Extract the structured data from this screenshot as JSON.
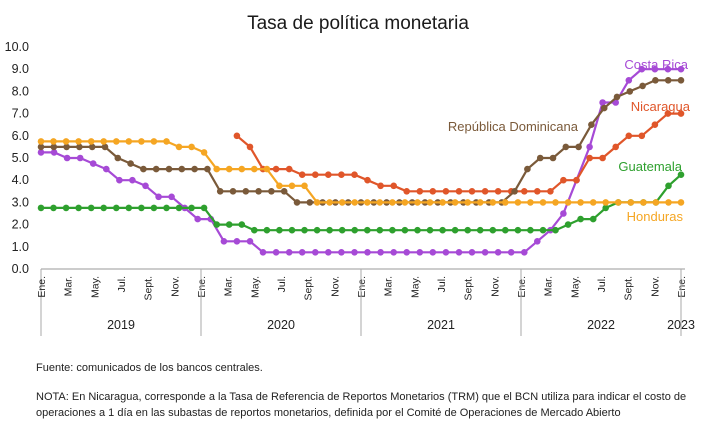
{
  "chart_data": {
    "type": "line",
    "title": "Tasa de política monetaria",
    "xlabel": "",
    "ylabel": "",
    "ylim": [
      0,
      10
    ],
    "yticks": [
      "0.0",
      "1.0",
      "2.0",
      "3.0",
      "4.0",
      "5.0",
      "6.0",
      "7.0",
      "8.0",
      "9.0",
      "10.0"
    ],
    "x_tick_labels": [
      "Ene.",
      "Mar.",
      "May.",
      "Jul.",
      "Sept.",
      "Nov.",
      "Ene.",
      "Mar.",
      "May.",
      "Jul.",
      "Sept.",
      "Nov.",
      "Ene.",
      "Mar.",
      "May.",
      "Jul.",
      "Sept.",
      "Nov.",
      "Ene.",
      "Mar.",
      "May.",
      "Jul.",
      "Sept.",
      "Nov.",
      "Ene."
    ],
    "years": [
      {
        "label": "2019",
        "start": 0,
        "end": 12
      },
      {
        "label": "2020",
        "start": 12,
        "end": 24
      },
      {
        "label": "2021",
        "start": 24,
        "end": 36
      },
      {
        "label": "2022",
        "start": 36,
        "end": 48
      },
      {
        "label": "2023",
        "start": 48,
        "end": 49
      }
    ],
    "x_range": [
      "2019-01",
      "2023-01"
    ],
    "grid": false,
    "series": [
      {
        "name": "Costa Rica",
        "color": "#a64ad6",
        "values": [
          5.25,
          5.25,
          5.0,
          5.0,
          4.75,
          4.5,
          4.0,
          4.0,
          3.75,
          3.25,
          3.25,
          2.75,
          2.25,
          2.25,
          1.25,
          1.25,
          1.25,
          0.75,
          0.75,
          0.75,
          0.75,
          0.75,
          0.75,
          0.75,
          0.75,
          0.75,
          0.75,
          0.75,
          0.75,
          0.75,
          0.75,
          0.75,
          0.75,
          0.75,
          0.75,
          0.75,
          0.75,
          0.75,
          1.25,
          1.75,
          2.5,
          4.0,
          5.5,
          7.5,
          7.5,
          8.5,
          9.0,
          9.0,
          9.0,
          9.0
        ]
      },
      {
        "name": "Nicaragua",
        "color": "#e0562a",
        "values": [
          null,
          null,
          null,
          null,
          null,
          null,
          null,
          null,
          null,
          null,
          null,
          null,
          null,
          null,
          null,
          6.0,
          5.5,
          4.5,
          4.5,
          4.5,
          4.25,
          4.25,
          4.25,
          4.25,
          4.25,
          4.0,
          3.75,
          3.75,
          3.5,
          3.5,
          3.5,
          3.5,
          3.5,
          3.5,
          3.5,
          3.5,
          3.5,
          3.5,
          3.5,
          3.5,
          4.0,
          4.0,
          5.0,
          5.0,
          5.5,
          6.0,
          6.0,
          6.5,
          7.0,
          7.0
        ]
      },
      {
        "name": "República Dominicana",
        "color": "#7a5a3a",
        "values": [
          5.5,
          5.5,
          5.5,
          5.5,
          5.5,
          5.5,
          5.0,
          4.75,
          4.5,
          4.5,
          4.5,
          4.5,
          4.5,
          4.5,
          3.5,
          3.5,
          3.5,
          3.5,
          3.5,
          3.5,
          3.0,
          3.0,
          3.0,
          3.0,
          3.0,
          3.0,
          3.0,
          3.0,
          3.0,
          3.0,
          3.0,
          3.0,
          3.0,
          3.0,
          3.0,
          3.0,
          3.0,
          3.5,
          4.5,
          5.0,
          5.0,
          5.5,
          5.5,
          6.5,
          7.25,
          7.75,
          8.0,
          8.25,
          8.5,
          8.5,
          8.5
        ]
      },
      {
        "name": "Guatemala",
        "color": "#2ea02e",
        "values": [
          2.75,
          2.75,
          2.75,
          2.75,
          2.75,
          2.75,
          2.75,
          2.75,
          2.75,
          2.75,
          2.75,
          2.75,
          2.75,
          2.75,
          2.0,
          2.0,
          2.0,
          1.75,
          1.75,
          1.75,
          1.75,
          1.75,
          1.75,
          1.75,
          1.75,
          1.75,
          1.75,
          1.75,
          1.75,
          1.75,
          1.75,
          1.75,
          1.75,
          1.75,
          1.75,
          1.75,
          1.75,
          1.75,
          1.75,
          1.75,
          1.75,
          1.75,
          2.0,
          2.25,
          2.25,
          2.75,
          3.0,
          3.0,
          3.0,
          3.0,
          3.75,
          4.25
        ]
      },
      {
        "name": "Honduras",
        "color": "#f5a623",
        "values": [
          5.75,
          5.75,
          5.75,
          5.75,
          5.75,
          5.75,
          5.75,
          5.75,
          5.75,
          5.75,
          5.75,
          5.5,
          5.5,
          5.25,
          4.5,
          4.5,
          4.5,
          4.5,
          4.5,
          3.75,
          3.75,
          3.75,
          3.0,
          3.0,
          3.0,
          3.0,
          3.0,
          3.0,
          3.0,
          3.0,
          3.0,
          3.0,
          3.0,
          3.0,
          3.0,
          3.0,
          3.0,
          3.0,
          3.0,
          3.0,
          3.0,
          3.0,
          3.0,
          3.0,
          3.0,
          3.0,
          3.0,
          3.0,
          3.0,
          3.0,
          3.0,
          3.0
        ]
      }
    ]
  },
  "source_note": "Fuente: comunicados de los bancos centrales.",
  "footnote": "NOTA: En Nicaragua, corresponde a la Tasa de Referencia de Reportos Monetarios (TRM) que el BCN utiliza para indicar el costo de operaciones a 1 día en las subastas de reportos monetarios, definida por el Comité de Operaciones de Mercado Abierto"
}
